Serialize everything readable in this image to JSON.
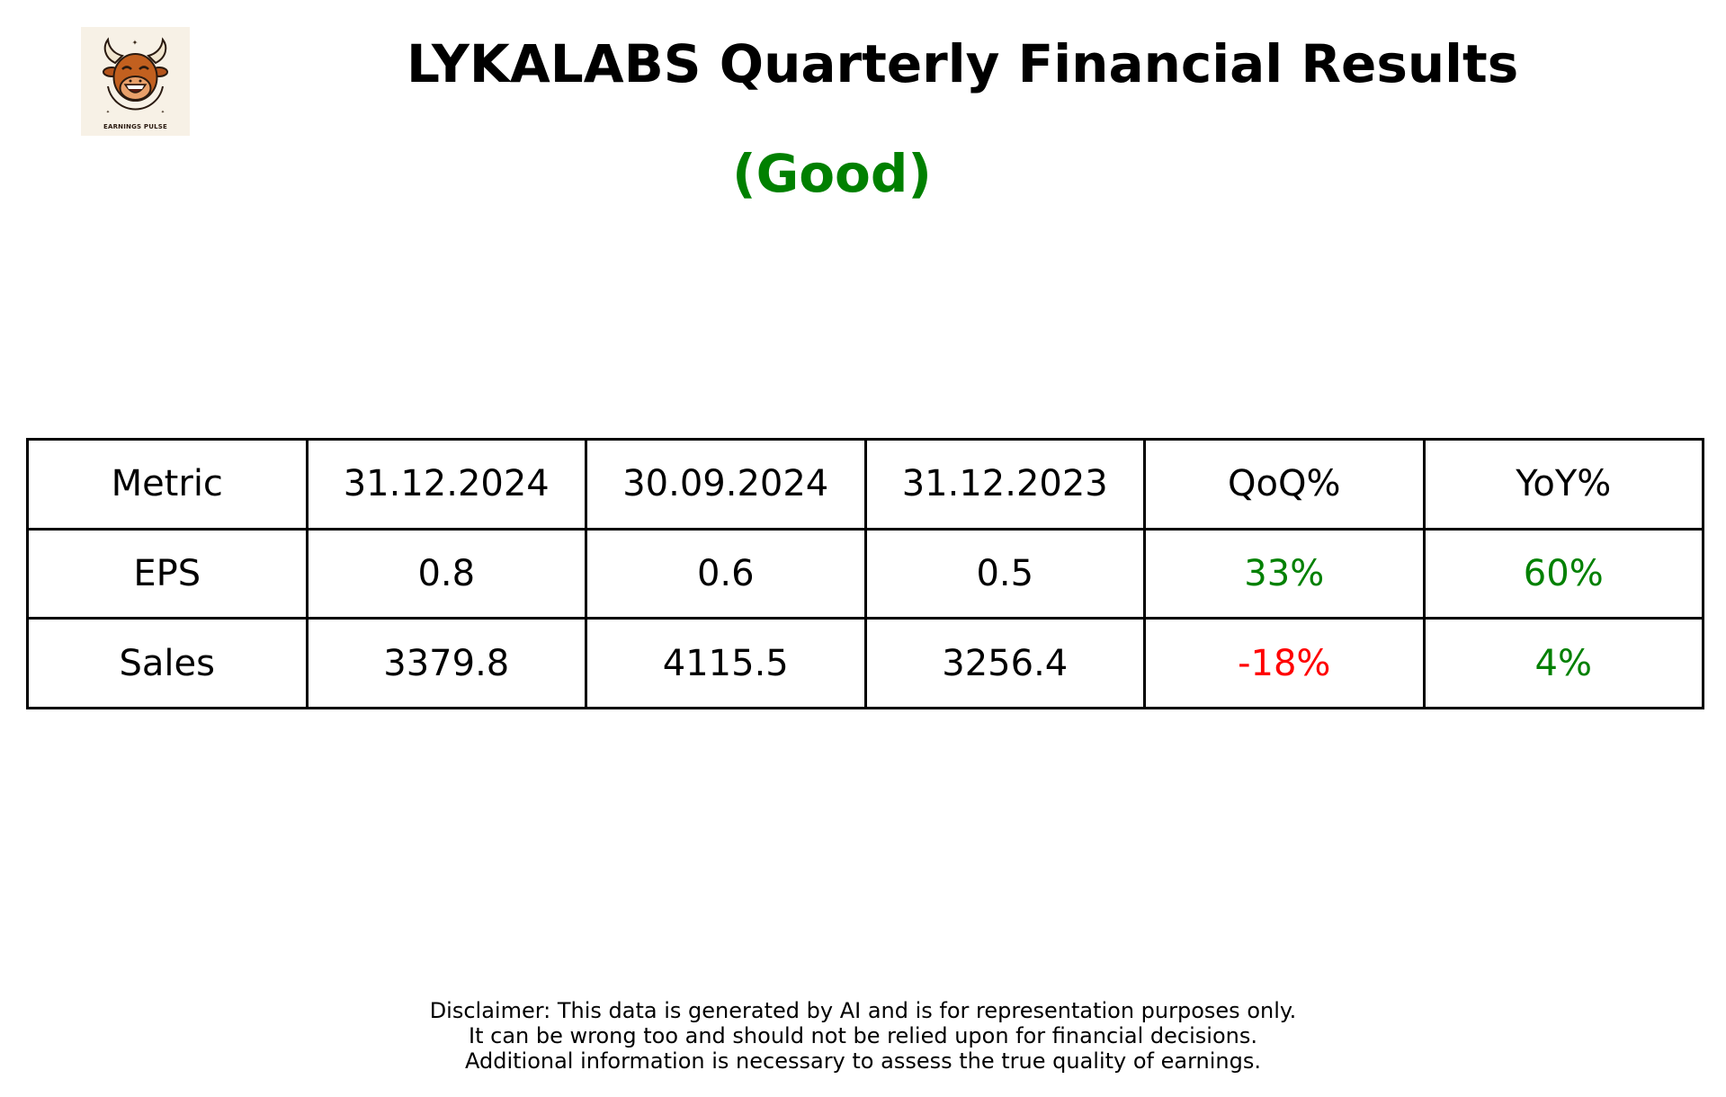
{
  "logo": {
    "icon": "bull-mascot-icon",
    "caption": "EARNINGS PULSE"
  },
  "title": "LYKALABS Quarterly Financial Results",
  "rating": {
    "text": "(Good)",
    "color": "#008000"
  },
  "table": {
    "headers": [
      "Metric",
      "31.12.2024",
      "30.09.2024",
      "31.12.2023",
      "QoQ%",
      "YoY%"
    ],
    "rows": [
      {
        "metric": "EPS",
        "values": [
          "0.8",
          "0.6",
          "0.5"
        ],
        "qoq": "33%",
        "qoq_color": "#008000",
        "yoy": "60%",
        "yoy_color": "#008000"
      },
      {
        "metric": "Sales",
        "values": [
          "3379.8",
          "4115.5",
          "3256.4"
        ],
        "qoq": "-18%",
        "qoq_color": "#ff0000",
        "yoy": "4%",
        "yoy_color": "#008000"
      }
    ]
  },
  "disclaimer": [
    "Disclaimer: This data is generated by AI and is for representation purposes only.",
    "It can be wrong too and should not be relied upon for financial decisions.",
    "Additional information is necessary to assess the true quality of earnings."
  ]
}
